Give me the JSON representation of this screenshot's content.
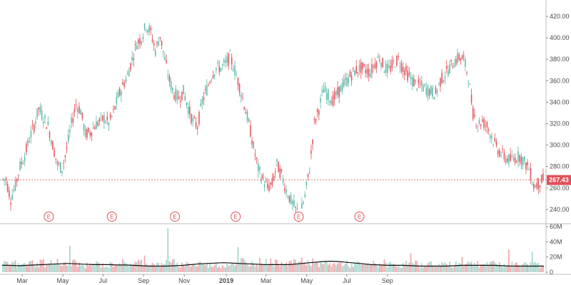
{
  "chart_data": {
    "type": "candlestick",
    "colors": {
      "up": "#5cb8a8",
      "down": "#e0525a",
      "ma": "#111111",
      "last_price": "#e0525a"
    },
    "price_axis": {
      "ticks": [
        240,
        260,
        280,
        300,
        320,
        340,
        360,
        380,
        400,
        420
      ],
      "tick_labels": [
        "240.00",
        "260.00",
        "280.00",
        "300.00",
        "320.00",
        "340.00",
        "360.00",
        "380.00",
        "400.00",
        "420.00"
      ],
      "range": [
        228,
        430
      ]
    },
    "volume_axis": {
      "ticks": [
        0,
        20,
        40,
        60
      ],
      "tick_labels": [
        "0",
        "20M",
        "40M",
        "60M"
      ],
      "range": [
        0,
        62
      ]
    },
    "time_axis": {
      "labels": [
        "Mar",
        "May",
        "Jul",
        "Sep",
        "Nov",
        "2019",
        "Mar",
        "May",
        "Jul",
        "Sep"
      ],
      "label_weeks": [
        4.3,
        13,
        21.6,
        30.3,
        39,
        48,
        56.5,
        65.2,
        73.8,
        82.5
      ]
    },
    "last_price": 267.43,
    "last_price_label": "267.43",
    "earnings": {
      "label": "E",
      "weeks": [
        10,
        23.5,
        37,
        50,
        63.5,
        76.5
      ]
    },
    "closes": [
      268,
      250,
      262,
      280,
      290,
      306,
      318,
      334,
      326,
      318,
      300,
      282,
      278,
      296,
      320,
      338,
      332,
      310,
      312,
      318,
      322,
      325,
      320,
      330,
      345,
      355,
      365,
      380,
      395,
      400,
      412,
      405,
      388,
      402,
      380,
      360,
      348,
      344,
      350,
      335,
      322,
      318,
      340,
      352,
      365,
      372,
      372,
      376,
      382,
      370,
      355,
      338,
      320,
      298,
      278,
      268,
      260,
      264,
      282,
      272,
      258,
      248,
      240,
      235,
      252,
      278,
      320,
      334,
      352,
      346,
      342,
      348,
      355,
      360,
      366,
      370,
      372,
      370,
      368,
      376,
      382,
      372,
      370,
      376,
      380,
      372,
      366,
      360,
      356,
      355,
      352,
      350,
      348,
      360,
      366,
      372,
      378,
      382,
      380,
      364,
      330,
      320,
      322,
      318,
      308,
      298,
      292,
      288,
      286,
      288,
      290,
      284,
      278,
      262,
      264,
      268
    ],
    "volumes": [
      11,
      10,
      12,
      9,
      10,
      11,
      13,
      10,
      14,
      9,
      12,
      16,
      11,
      10,
      9,
      13,
      10,
      8,
      9,
      10,
      11,
      9,
      8,
      10,
      12,
      13,
      10,
      11,
      12,
      13,
      14,
      12,
      11,
      10,
      9,
      18,
      13,
      9,
      10,
      11,
      10,
      9,
      12,
      10,
      9,
      10,
      8,
      9,
      11,
      12,
      10,
      15,
      11,
      12,
      13,
      14,
      13,
      15,
      12,
      13,
      14,
      13,
      12,
      15,
      14,
      12,
      13,
      11,
      10,
      12,
      11,
      10,
      12,
      11,
      9,
      10,
      11,
      9,
      10,
      11,
      10,
      12,
      10,
      11,
      10,
      9,
      12,
      10,
      11,
      9,
      10,
      11,
      9,
      10,
      11,
      10,
      9,
      12,
      10,
      14,
      11,
      12,
      10,
      11,
      10,
      12,
      11,
      10,
      9,
      10,
      11,
      10,
      12,
      16,
      12,
      9
    ],
    "volume_spikes": [
      [
        14,
        35
      ],
      [
        30,
        22
      ],
      [
        35,
        58
      ],
      [
        50,
        33
      ],
      [
        66,
        18
      ],
      [
        87,
        25
      ],
      [
        98,
        20
      ],
      [
        108,
        30
      ],
      [
        113,
        27
      ]
    ],
    "volume_ma": [
      9,
      9,
      8.5,
      9,
      9.5,
      10,
      10.5,
      11,
      11.5,
      11,
      10.5,
      10,
      10,
      10,
      9.5,
      9.5,
      9,
      8.5,
      8,
      8,
      8,
      8.5,
      9,
      10,
      11,
      11.5,
      12,
      12.5,
      12,
      11.5,
      11,
      10.5,
      10,
      10,
      10,
      10,
      11,
      12,
      13,
      14,
      14.5,
      14,
      13,
      12,
      11,
      10,
      9.5,
      9,
      9,
      9,
      8.5,
      8,
      8,
      8,
      8,
      8.5,
      9,
      9,
      9,
      9,
      9,
      8.5,
      8,
      8,
      8,
      8,
      8
    ]
  }
}
